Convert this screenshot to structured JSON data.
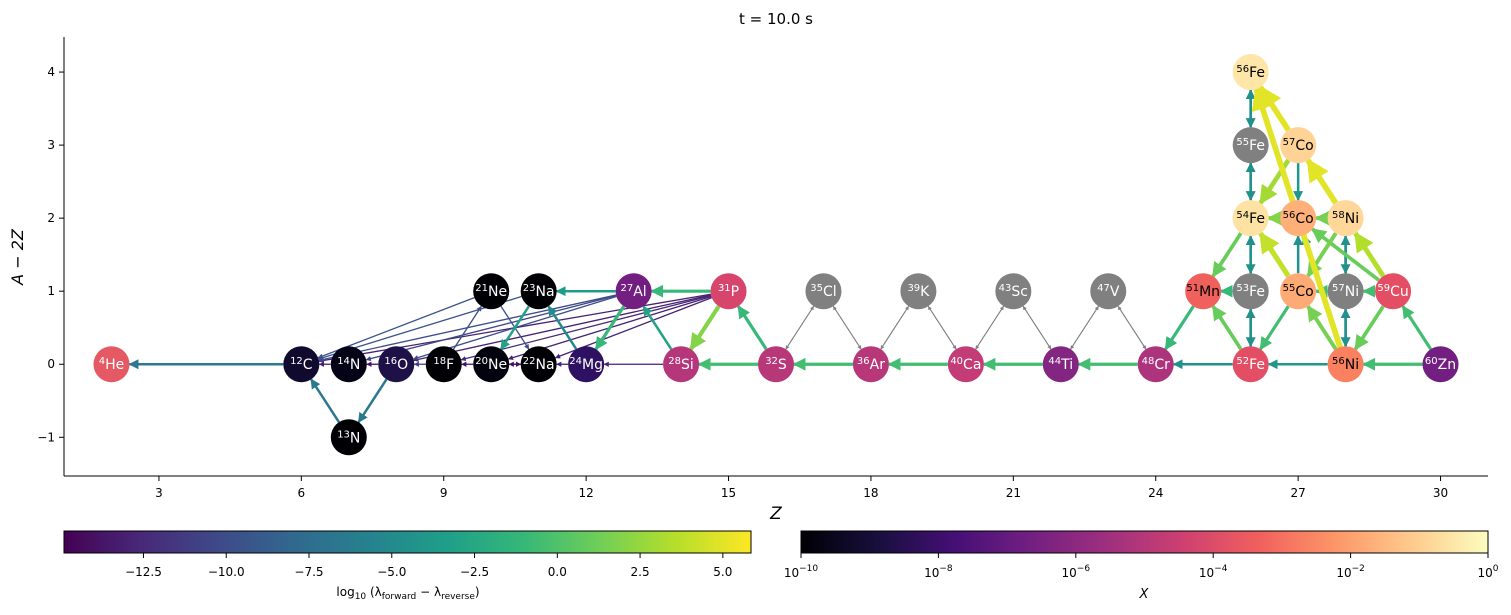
{
  "chart_data": {
    "type": "scatter",
    "title": "t = 10.0 s",
    "xlabel": "Z",
    "ylabel": "A − 2Z",
    "xlim": [
      1.0,
      31.0
    ],
    "ylim": [
      -1.53,
      4.48
    ],
    "grid": false,
    "xticks": [
      {
        "v": 3,
        "t": "3"
      },
      {
        "v": 6,
        "t": "6"
      },
      {
        "v": 9,
        "t": "9"
      },
      {
        "v": 12,
        "t": "12"
      },
      {
        "v": 15,
        "t": "15"
      },
      {
        "v": 18,
        "t": "18"
      },
      {
        "v": 21,
        "t": "21"
      },
      {
        "v": 24,
        "t": "24"
      },
      {
        "v": 27,
        "t": "27"
      },
      {
        "v": 30,
        "t": "30"
      }
    ],
    "yticks": [
      {
        "v": -1,
        "t": "−1"
      },
      {
        "v": 0,
        "t": "0"
      },
      {
        "v": 1,
        "t": "1"
      },
      {
        "v": 2,
        "t": "2"
      },
      {
        "v": 3,
        "t": "3"
      },
      {
        "v": 4,
        "t": "4"
      }
    ],
    "nodes": [
      {
        "id": "he4",
        "A": "4",
        "sym": "He",
        "Z": 2,
        "y": 0,
        "fill": "#e55964",
        "text": "#ffffff"
      },
      {
        "id": "c12",
        "A": "12",
        "sym": "C",
        "Z": 6,
        "y": 0,
        "fill": "#0f0a2e",
        "text": "#ffffff"
      },
      {
        "id": "n13",
        "A": "13",
        "sym": "N",
        "Z": 7,
        "y": -1,
        "fill": "#000004",
        "text": "#ffffff"
      },
      {
        "id": "n14",
        "A": "14",
        "sym": "N",
        "Z": 7,
        "y": 0,
        "fill": "#050416",
        "text": "#ffffff"
      },
      {
        "id": "o16",
        "A": "16",
        "sym": "O",
        "Z": 8,
        "y": 0,
        "fill": "#1d1147",
        "text": "#ffffff"
      },
      {
        "id": "f18",
        "A": "18",
        "sym": "F",
        "Z": 9,
        "y": 0,
        "fill": "#000004",
        "text": "#ffffff"
      },
      {
        "id": "ne20",
        "A": "20",
        "sym": "Ne",
        "Z": 10,
        "y": 0,
        "fill": "#03030f",
        "text": "#ffffff"
      },
      {
        "id": "ne21",
        "A": "21",
        "sym": "Ne",
        "Z": 10,
        "y": 1,
        "fill": "#000004",
        "text": "#ffffff"
      },
      {
        "id": "na22",
        "A": "22",
        "sym": "Na",
        "Z": 11,
        "y": 0,
        "fill": "#000004",
        "text": "#ffffff"
      },
      {
        "id": "na23",
        "A": "23",
        "sym": "Na",
        "Z": 11,
        "y": 1,
        "fill": "#000004",
        "text": "#ffffff"
      },
      {
        "id": "mg24",
        "A": "24",
        "sym": "Mg",
        "Z": 12,
        "y": 0,
        "fill": "#2e1162",
        "text": "#ffffff"
      },
      {
        "id": "al27",
        "A": "27",
        "sym": "Al",
        "Z": 13,
        "y": 1,
        "fill": "#721f81",
        "text": "#ffffff"
      },
      {
        "id": "si28",
        "A": "28",
        "sym": "Si",
        "Z": 14,
        "y": 0,
        "fill": "#b5367a",
        "text": "#ffffff"
      },
      {
        "id": "p31",
        "A": "31",
        "sym": "P",
        "Z": 15,
        "y": 1,
        "fill": "#d8456c",
        "text": "#ffffff"
      },
      {
        "id": "s32",
        "A": "32",
        "sym": "S",
        "Z": 16,
        "y": 0,
        "fill": "#b73779",
        "text": "#ffffff"
      },
      {
        "id": "cl35",
        "A": "35",
        "sym": "Cl",
        "Z": 17,
        "y": 1,
        "fill": "#808080",
        "text": "#ffffff"
      },
      {
        "id": "ar36",
        "A": "36",
        "sym": "Ar",
        "Z": 18,
        "y": 0,
        "fill": "#b73779",
        "text": "#ffffff"
      },
      {
        "id": "k39",
        "A": "39",
        "sym": "K",
        "Z": 19,
        "y": 1,
        "fill": "#808080",
        "text": "#ffffff"
      },
      {
        "id": "ca40",
        "A": "40",
        "sym": "Ca",
        "Z": 20,
        "y": 0,
        "fill": "#c43c75",
        "text": "#ffffff"
      },
      {
        "id": "sc43",
        "A": "43",
        "sym": "Sc",
        "Z": 21,
        "y": 1,
        "fill": "#808080",
        "text": "#ffffff"
      },
      {
        "id": "ti44",
        "A": "44",
        "sym": "Ti",
        "Z": 22,
        "y": 0,
        "fill": "#822681",
        "text": "#ffffff"
      },
      {
        "id": "v47",
        "A": "47",
        "sym": "V",
        "Z": 23,
        "y": 1,
        "fill": "#808080",
        "text": "#ffffff"
      },
      {
        "id": "cr48",
        "A": "48",
        "sym": "Cr",
        "Z": 24,
        "y": 0,
        "fill": "#ad347c",
        "text": "#ffffff"
      },
      {
        "id": "mn51",
        "A": "51",
        "sym": "Mn",
        "Z": 25,
        "y": 1,
        "fill": "#f0605d",
        "text": "#000000"
      },
      {
        "id": "fe52",
        "A": "52",
        "sym": "Fe",
        "Z": 26,
        "y": 0,
        "fill": "#e34e65",
        "text": "#ffffff"
      },
      {
        "id": "fe53",
        "A": "53",
        "sym": "Fe",
        "Z": 26,
        "y": 1,
        "fill": "#808080",
        "text": "#ffffff"
      },
      {
        "id": "fe54",
        "A": "54",
        "sym": "Fe",
        "Z": 26,
        "y": 2,
        "fill": "#fde2a4",
        "text": "#000000"
      },
      {
        "id": "fe55",
        "A": "55",
        "sym": "Fe",
        "Z": 26,
        "y": 3,
        "fill": "#808080",
        "text": "#ffffff"
      },
      {
        "id": "fe56",
        "A": "56",
        "sym": "Fe",
        "Z": 26,
        "y": 4,
        "fill": "#fde6a8",
        "text": "#000000"
      },
      {
        "id": "co55",
        "A": "55",
        "sym": "Co",
        "Z": 27,
        "y": 1,
        "fill": "#feaa74",
        "text": "#000000"
      },
      {
        "id": "co56",
        "A": "56",
        "sym": "Co",
        "Z": 27,
        "y": 2,
        "fill": "#feb078",
        "text": "#000000"
      },
      {
        "id": "co57",
        "A": "57",
        "sym": "Co",
        "Z": 27,
        "y": 3,
        "fill": "#fed395",
        "text": "#000000"
      },
      {
        "id": "ni56",
        "A": "56",
        "sym": "Ni",
        "Z": 28,
        "y": 0,
        "fill": "#fa815f",
        "text": "#000000"
      },
      {
        "id": "ni57",
        "A": "57",
        "sym": "Ni",
        "Z": 28,
        "y": 1,
        "fill": "#808080",
        "text": "#ffffff"
      },
      {
        "id": "ni58",
        "A": "58",
        "sym": "Ni",
        "Z": 28,
        "y": 2,
        "fill": "#fed799",
        "text": "#000000"
      },
      {
        "id": "cu59",
        "A": "59",
        "sym": "Cu",
        "Z": 29,
        "y": 1,
        "fill": "#e34e65",
        "text": "#ffffff"
      },
      {
        "id": "zn60",
        "A": "60",
        "sym": "Zn",
        "Z": 30,
        "y": 0,
        "fill": "#721f81",
        "text": "#ffffff"
      }
    ],
    "edges": [
      [
        "c12",
        "he4",
        -6.5
      ],
      [
        "n13",
        "c12",
        -6.5
      ],
      [
        "o16",
        "n13",
        -6.5
      ],
      [
        "n14",
        "c12",
        -13
      ],
      [
        "o16",
        "n14",
        -14
      ],
      [
        "f18",
        "o16",
        -11
      ],
      [
        "ne20",
        "f18",
        -14
      ],
      [
        "na22",
        "ne20",
        -14
      ],
      [
        "ne20",
        "na22",
        -14
      ],
      [
        "mg24",
        "na22",
        -13
      ],
      [
        "f18",
        "ne21",
        -10
      ],
      [
        "ne21",
        "na22",
        -10
      ],
      [
        "na23",
        "c12",
        -9.5
      ],
      [
        "ne21",
        "c12",
        -9.5
      ],
      [
        "na23",
        "ne20",
        -3
      ],
      [
        "mg24",
        "na23",
        -5
      ],
      [
        "al27",
        "na23",
        -3.5
      ],
      [
        "al27",
        "c12",
        -10
      ],
      [
        "al27",
        "o16",
        -10
      ],
      [
        "al27",
        "n14",
        -10.5
      ],
      [
        "p31",
        "c12",
        -13
      ],
      [
        "p31",
        "o16",
        -13
      ],
      [
        "p31",
        "ne20",
        -13
      ],
      [
        "p31",
        "na22",
        -13
      ],
      [
        "p31",
        "f18",
        -12.5
      ],
      [
        "al27",
        "mg24",
        -1
      ],
      [
        "si28",
        "mg24",
        -13
      ],
      [
        "si28",
        "al27",
        -3
      ],
      [
        "p31",
        "al27",
        -1
      ],
      [
        "p31",
        "si28",
        2
      ],
      [
        "s32",
        "p31",
        -1
      ],
      [
        "s32",
        "si28",
        -0.5
      ],
      [
        "ar36",
        "s32",
        -0.5
      ],
      [
        "ca40",
        "ar36",
        -0.5
      ],
      [
        "ti44",
        "ca40",
        -0.5
      ],
      [
        "cr48",
        "ti44",
        -0.5
      ],
      [
        "fe52",
        "cr48",
        -4.5
      ],
      [
        "mn51",
        "cr48",
        -1
      ],
      [
        "fe52",
        "mn51",
        1
      ],
      [
        "fe54",
        "mn51",
        1
      ],
      [
        "fe53",
        "mn51",
        -1
      ],
      [
        "fe52",
        "fe53",
        -4.5
      ],
      [
        "fe53",
        "fe52",
        -4.5
      ],
      [
        "fe53",
        "fe54",
        -4.5
      ],
      [
        "fe54",
        "fe53",
        -4.5
      ],
      [
        "fe54",
        "fe55",
        -4.5
      ],
      [
        "fe55",
        "fe54",
        -4.5
      ],
      [
        "fe55",
        "fe56",
        -4.5
      ],
      [
        "fe56",
        "fe55",
        -4.5
      ],
      [
        "co55",
        "fe52",
        -0.5
      ],
      [
        "co55",
        "fe54",
        4
      ],
      [
        "co55",
        "co56",
        -4.5
      ],
      [
        "ni56",
        "fe52",
        -4
      ],
      [
        "ni56",
        "co55",
        1.5
      ],
      [
        "ni56",
        "co56",
        -4.5
      ],
      [
        "ni56",
        "fe56",
        5
      ],
      [
        "ni56",
        "fe56",
        -4.5
      ],
      [
        "co56",
        "fe54",
        2
      ],
      [
        "co57",
        "fe54",
        3
      ],
      [
        "co57",
        "co56",
        -4
      ],
      [
        "co57",
        "fe56",
        5
      ],
      [
        "ni58",
        "co57",
        5
      ],
      [
        "ni58",
        "co56",
        1.5
      ],
      [
        "ni58",
        "co55",
        1.5
      ],
      [
        "ni57",
        "ni58",
        -4.5
      ],
      [
        "ni58",
        "ni57",
        -4.5
      ],
      [
        "ni57",
        "ni56",
        -4.5
      ],
      [
        "ni56",
        "ni57",
        -4.5
      ],
      [
        "ni57",
        "co55",
        -0.5
      ],
      [
        "cu59",
        "ni57",
        -0.5
      ],
      [
        "cu59",
        "ni56",
        1
      ],
      [
        "cu59",
        "ni58",
        3.5
      ],
      [
        "cu59",
        "co56",
        1
      ],
      [
        "zn60",
        "ni56",
        -0.5
      ],
      [
        "zn60",
        "cu59",
        -0.5
      ]
    ],
    "inactive_edges": [
      [
        "cl35",
        "s32"
      ],
      [
        "s32",
        "cl35"
      ],
      [
        "cl35",
        "ar36"
      ],
      [
        "ar36",
        "cl35"
      ],
      [
        "k39",
        "ar36"
      ],
      [
        "ar36",
        "k39"
      ],
      [
        "k39",
        "ca40"
      ],
      [
        "ca40",
        "k39"
      ],
      [
        "sc43",
        "ca40"
      ],
      [
        "ca40",
        "sc43"
      ],
      [
        "sc43",
        "ti44"
      ],
      [
        "ti44",
        "sc43"
      ],
      [
        "v47",
        "ti44"
      ],
      [
        "ti44",
        "v47"
      ],
      [
        "v47",
        "cr48"
      ],
      [
        "cr48",
        "v47"
      ]
    ],
    "colorbars": [
      {
        "label": "log₁₀ (λforward − λreverse)",
        "label_main": "log",
        "label_sub": "10",
        "label_rest": " (λ",
        "sub1": "forward",
        "mid": " − λ",
        "sub2": "reverse",
        "end": ")",
        "cmap": "viridis",
        "range": [
          -14.9,
          5.85
        ],
        "ticks": [
          {
            "v": -12.5,
            "t": "−12.5"
          },
          {
            "v": -10,
            "t": "−10.0"
          },
          {
            "v": -7.5,
            "t": "−7.5"
          },
          {
            "v": -5,
            "t": "−5.0"
          },
          {
            "v": -2.5,
            "t": "−2.5"
          },
          {
            "v": 0,
            "t": "0.0"
          },
          {
            "v": 2.5,
            "t": "2.5"
          },
          {
            "v": 5,
            "t": "5.0"
          }
        ]
      },
      {
        "label": "X",
        "cmap": "magma",
        "scale": "log",
        "range": [
          -10,
          0
        ],
        "ticks": [
          {
            "v": -10,
            "b": "10",
            "e": "−10"
          },
          {
            "v": -8,
            "b": "10",
            "e": "−8"
          },
          {
            "v": -6,
            "b": "10",
            "e": "−6"
          },
          {
            "v": -4,
            "b": "10",
            "e": "−4"
          },
          {
            "v": -2,
            "b": "10",
            "e": "−2"
          },
          {
            "v": 0,
            "b": "10",
            "e": "0"
          }
        ]
      }
    ],
    "colors": {
      "viridis": [
        "#440154",
        "#482878",
        "#3e4989",
        "#31688e",
        "#26828e",
        "#1f9e89",
        "#35b779",
        "#6ece58",
        "#b5de2b",
        "#fde725"
      ],
      "magma": [
        "#000004",
        "#180f3d",
        "#440f76",
        "#721f81",
        "#9e2f7f",
        "#cd4071",
        "#f1605d",
        "#fd9668",
        "#feca8d",
        "#fcfdbf"
      ],
      "inactive_edge": "#808080"
    }
  }
}
